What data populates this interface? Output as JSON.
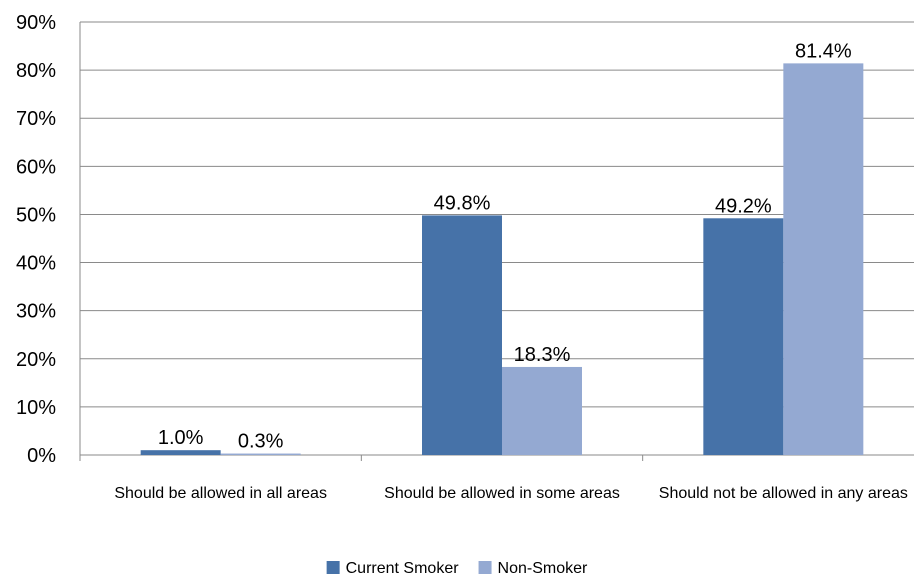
{
  "chart_data": {
    "type": "bar",
    "title": "",
    "xlabel": "",
    "ylabel": "",
    "categories": [
      "Should be allowed in all areas",
      "Should be allowed in some areas",
      "Should not be allowed in any areas"
    ],
    "series": [
      {
        "name": "Current Smoker",
        "values": [
          1.0,
          49.8,
          49.2
        ],
        "labels": [
          "1.0%",
          "49.8%",
          "49.2%"
        ],
        "color": "#4672A8"
      },
      {
        "name": "Non-Smoker",
        "values": [
          0.3,
          18.3,
          81.4
        ],
        "labels": [
          "0.3%",
          "18.3%",
          "81.4%"
        ],
        "color": "#94A9D2"
      }
    ],
    "ylim": [
      0,
      90
    ],
    "y_ticks": [
      "0%",
      "10%",
      "20%",
      "30%",
      "40%",
      "50%",
      "60%",
      "70%",
      "80%",
      "90%"
    ],
    "grid": true,
    "legend_position": "bottom"
  },
  "colors": {
    "grid": "#8A8A8A",
    "axis": "#8A8A8A",
    "text": "#000000",
    "background": "#FFFFFF"
  }
}
